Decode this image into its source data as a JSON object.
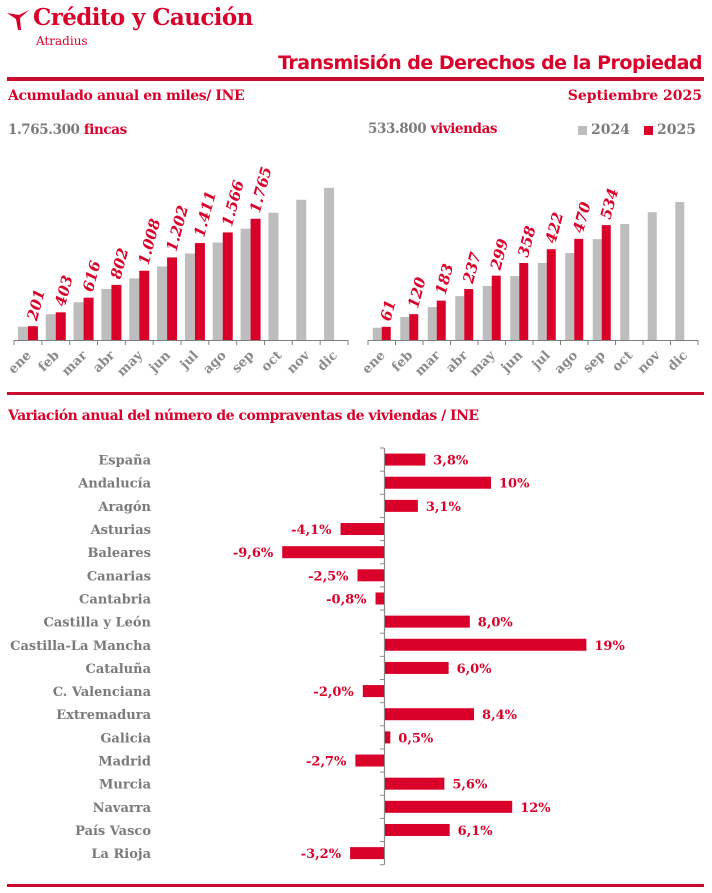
{
  "header": {
    "brand": "Crédito y Caución",
    "brand_sub": "Atradius",
    "logo_icon": "bird-arrow-icon",
    "title": "Transmisión de Derechos de la Propiedad"
  },
  "section1": {
    "title": "Acumulado anual en miles/ INE",
    "period": "Septiembre  2025",
    "left_total_value": "1.765.300",
    "left_total_unit": "fincas",
    "right_total_value": "533.800",
    "right_total_unit": "viviendas",
    "legend": [
      {
        "label": "2024",
        "color": "#bdbdbd"
      },
      {
        "label": "2025",
        "color": "#d9002a"
      }
    ]
  },
  "section2": {
    "title": "Variación anual del número de compraventas de viviendas / INE"
  },
  "colors": {
    "accent": "#d9002a",
    "rule": "#cc0a2f",
    "prev_year": "#bdbdbd",
    "label_grey": "#7a7a7a"
  },
  "chart_data": [
    {
      "type": "bar",
      "title": "Fincas - acumulado anual (miles)",
      "categories": [
        "ene",
        "feb",
        "mar",
        "abr",
        "may",
        "jun",
        "jul",
        "ago",
        "sep",
        "oct",
        "nov",
        "dic"
      ],
      "series": [
        {
          "name": "2024",
          "values": [
            193,
            376,
            550,
            743,
            897,
            1071,
            1259,
            1419,
            1621,
            1853,
            2041,
            2215
          ]
        },
        {
          "name": "2025",
          "values": [
            201,
            403,
            616,
            802,
            1008,
            1202,
            1411,
            1566,
            1765,
            null,
            null,
            null
          ]
        }
      ],
      "data_labels_2025": [
        "201",
        "403",
        "616",
        "802",
        "1.008",
        "1.202",
        "1.411",
        "1.566",
        "1.765"
      ],
      "ylim": [
        0,
        2300
      ],
      "grid": false,
      "legend": "top-right"
    },
    {
      "type": "bar",
      "title": "Viviendas - acumulado anual (miles)",
      "categories": [
        "ene",
        "feb",
        "mar",
        "abr",
        "may",
        "jun",
        "jul",
        "ago",
        "sep",
        "oct",
        "nov",
        "dic"
      ],
      "series": [
        {
          "name": "2024",
          "values": [
            57,
            107,
            153,
            204,
            251,
            297,
            358,
            404,
            469,
            539,
            594,
            641
          ]
        },
        {
          "name": "2025",
          "values": [
            61,
            120,
            183,
            237,
            299,
            358,
            422,
            470,
            534,
            null,
            null,
            null
          ]
        }
      ],
      "data_labels_2025": [
        "61",
        "120",
        "183",
        "237",
        "299",
        "358",
        "422",
        "470",
        "534"
      ],
      "ylim": [
        0,
        660
      ],
      "grid": false,
      "legend": "top-right"
    },
    {
      "type": "bar",
      "orientation": "horizontal",
      "title": "Variación anual del número de compraventas de viviendas / INE",
      "categories": [
        "España",
        "Andalucía",
        "Aragón",
        "Asturias",
        "Baleares",
        "Canarias",
        "Cantabria",
        "Castilla y León",
        "Castilla-La Mancha",
        "Cataluña",
        "C. Valenciana",
        "Extremadura",
        "Galicia",
        "Madrid",
        "Murcia",
        "Navarra",
        "País Vasco",
        "La Rioja"
      ],
      "values": [
        3.8,
        10,
        3.1,
        -4.1,
        -9.6,
        -2.5,
        -0.8,
        8.0,
        19,
        6.0,
        -2.0,
        8.4,
        0.5,
        -2.7,
        5.6,
        12,
        6.1,
        -3.2
      ],
      "labels": [
        "3,8%",
        "10%",
        "3,1%",
        "-4,1%",
        "-9,6%",
        "-2,5%",
        "-0,8%",
        "8,0%",
        "19%",
        "6,0%",
        "-2,0%",
        "8,4%",
        "0,5%",
        "-2,7%",
        "5,6%",
        "12%",
        "6,1%",
        "-3,2%"
      ],
      "unit": "%",
      "grid": false
    }
  ]
}
